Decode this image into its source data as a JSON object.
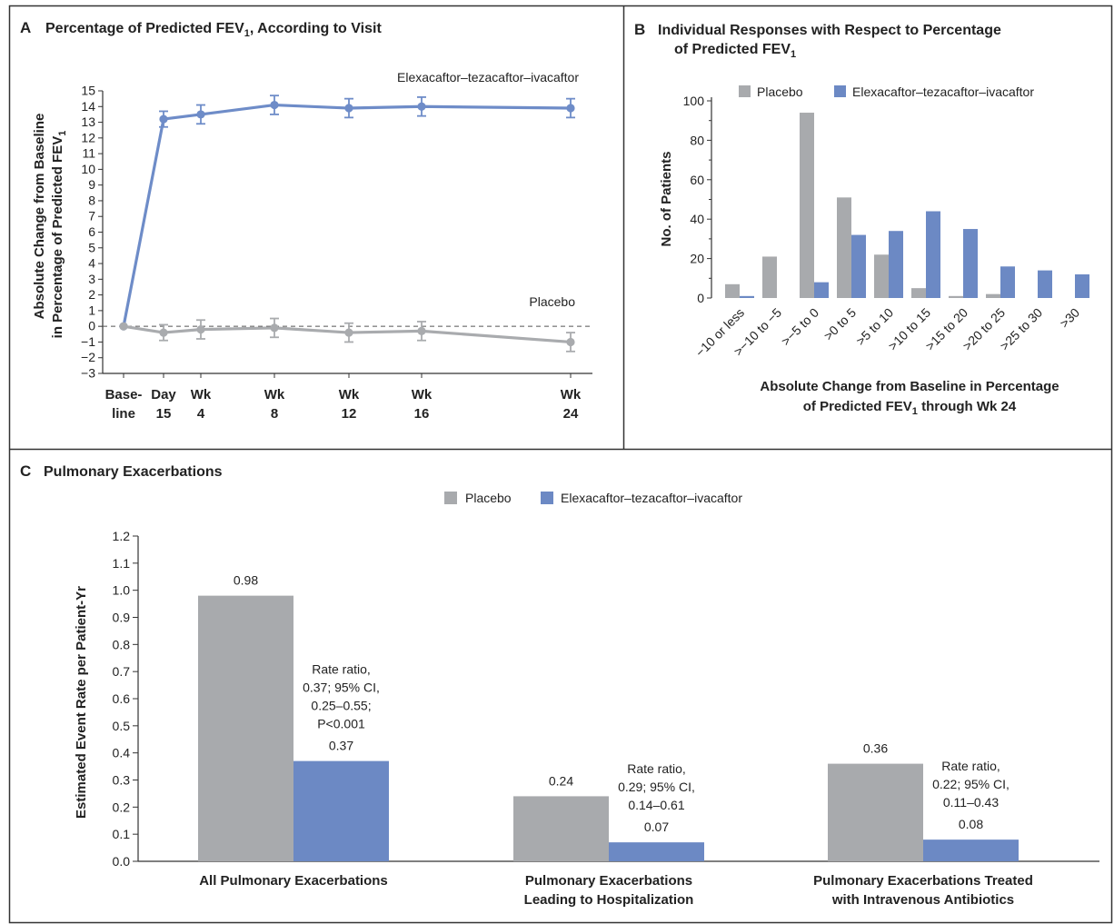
{
  "colors": {
    "placebo": "#a8aaad",
    "treatment": "#6c89c4",
    "line_treatment": "#6e8cc8",
    "line_placebo": "#a9abae",
    "frame": "#333333"
  },
  "chart_data": [
    {
      "panel": "A",
      "type": "line",
      "title": "Percentage of Predicted FEV",
      "title_sub": "1",
      "title_suffix": ", According to Visit",
      "ylabel_line1": "Absolute Change from Baseline",
      "ylabel_line2": "in Percentage of Predicted FEV",
      "ylabel_sub": "1",
      "ylim": [
        -3,
        15
      ],
      "yticks": [
        "−3",
        "−2",
        "−1",
        "0",
        "1",
        "2",
        "3",
        "4",
        "5",
        "6",
        "7",
        "8",
        "9",
        "10",
        "11",
        "12",
        "13",
        "14",
        "15"
      ],
      "x_days": [
        0,
        15,
        28,
        56,
        84,
        112,
        168
      ],
      "x_labels": [
        [
          "Base-",
          "line"
        ],
        [
          "Day",
          "15"
        ],
        [
          "Wk",
          "4"
        ],
        [
          "Wk",
          "8"
        ],
        [
          "Wk",
          "12"
        ],
        [
          "Wk",
          "16"
        ],
        [
          "Wk",
          "24"
        ]
      ],
      "series": [
        {
          "name": "Elexacaftor–tezacaftor–ivacaftor",
          "values": [
            0,
            13.2,
            13.5,
            14.1,
            13.9,
            14.0,
            13.9
          ],
          "err": [
            0,
            0.5,
            0.6,
            0.6,
            0.6,
            0.6,
            0.6
          ]
        },
        {
          "name": "Placebo",
          "values": [
            0,
            -0.4,
            -0.2,
            -0.1,
            -0.4,
            -0.3,
            -1.0
          ],
          "err": [
            0,
            0.5,
            0.6,
            0.6,
            0.6,
            0.6,
            0.6
          ]
        }
      ]
    },
    {
      "panel": "B",
      "type": "bar",
      "title_line1": "Individual Responses with Respect to Percentage",
      "title_line2": "of Predicted FEV",
      "title_sub": "1",
      "ylabel": "No. of Patients",
      "xlabel_line1": "Absolute Change from Baseline in Percentage",
      "xlabel_line2": "of Predicted FEV",
      "xlabel_sub": "1",
      "xlabel_suffix": " through Wk 24",
      "ylim": [
        0,
        100
      ],
      "yticks": [
        "0",
        "20",
        "40",
        "60",
        "80",
        "100"
      ],
      "categories": [
        "−10 or less",
        ">−10 to −5",
        ">−5 to 0",
        ">0 to 5",
        ">5 to 10",
        ">10 to 15",
        ">15 to 20",
        ">20 to 25",
        ">25 to 30",
        ">30"
      ],
      "series": [
        {
          "name": "Placebo",
          "values": [
            7,
            21,
            94,
            51,
            22,
            5,
            1,
            2,
            0,
            0
          ]
        },
        {
          "name": "Elexacaftor–tezacaftor–ivacaftor",
          "values": [
            1,
            0,
            8,
            32,
            34,
            44,
            35,
            16,
            14,
            12
          ]
        }
      ]
    },
    {
      "panel": "C",
      "type": "bar",
      "title": "Pulmonary Exacerbations",
      "ylabel": "Estimated Event Rate per Patient-Yr",
      "ylim": [
        0,
        1.2
      ],
      "yticks": [
        "0.0",
        "0.1",
        "0.2",
        "0.3",
        "0.4",
        "0.5",
        "0.6",
        "0.7",
        "0.8",
        "0.9",
        "1.0",
        "1.1",
        "1.2"
      ],
      "categories": [
        [
          "All Pulmonary Exacerbations"
        ],
        [
          "Pulmonary Exacerbations",
          "Leading to Hospitalization"
        ],
        [
          "Pulmonary Exacerbations Treated",
          "with Intravenous Antibiotics"
        ]
      ],
      "series": [
        {
          "name": "Placebo",
          "values": [
            0.98,
            0.24,
            0.36
          ],
          "labels": [
            "0.98",
            "0.24",
            "0.36"
          ]
        },
        {
          "name": "Elexacaftor–tezacaftor–ivacaftor",
          "values": [
            0.37,
            0.07,
            0.08
          ],
          "labels": [
            "0.37",
            "0.07",
            "0.08"
          ]
        }
      ],
      "annotations": [
        [
          "Rate ratio,",
          "0.37; 95% CI,",
          "0.25–0.55;",
          "P<0.001"
        ],
        [
          "Rate ratio,",
          "0.29; 95% CI,",
          "0.14–0.61"
        ],
        [
          "Rate ratio,",
          "0.22; 95% CI,",
          "0.11–0.43"
        ]
      ]
    }
  ]
}
